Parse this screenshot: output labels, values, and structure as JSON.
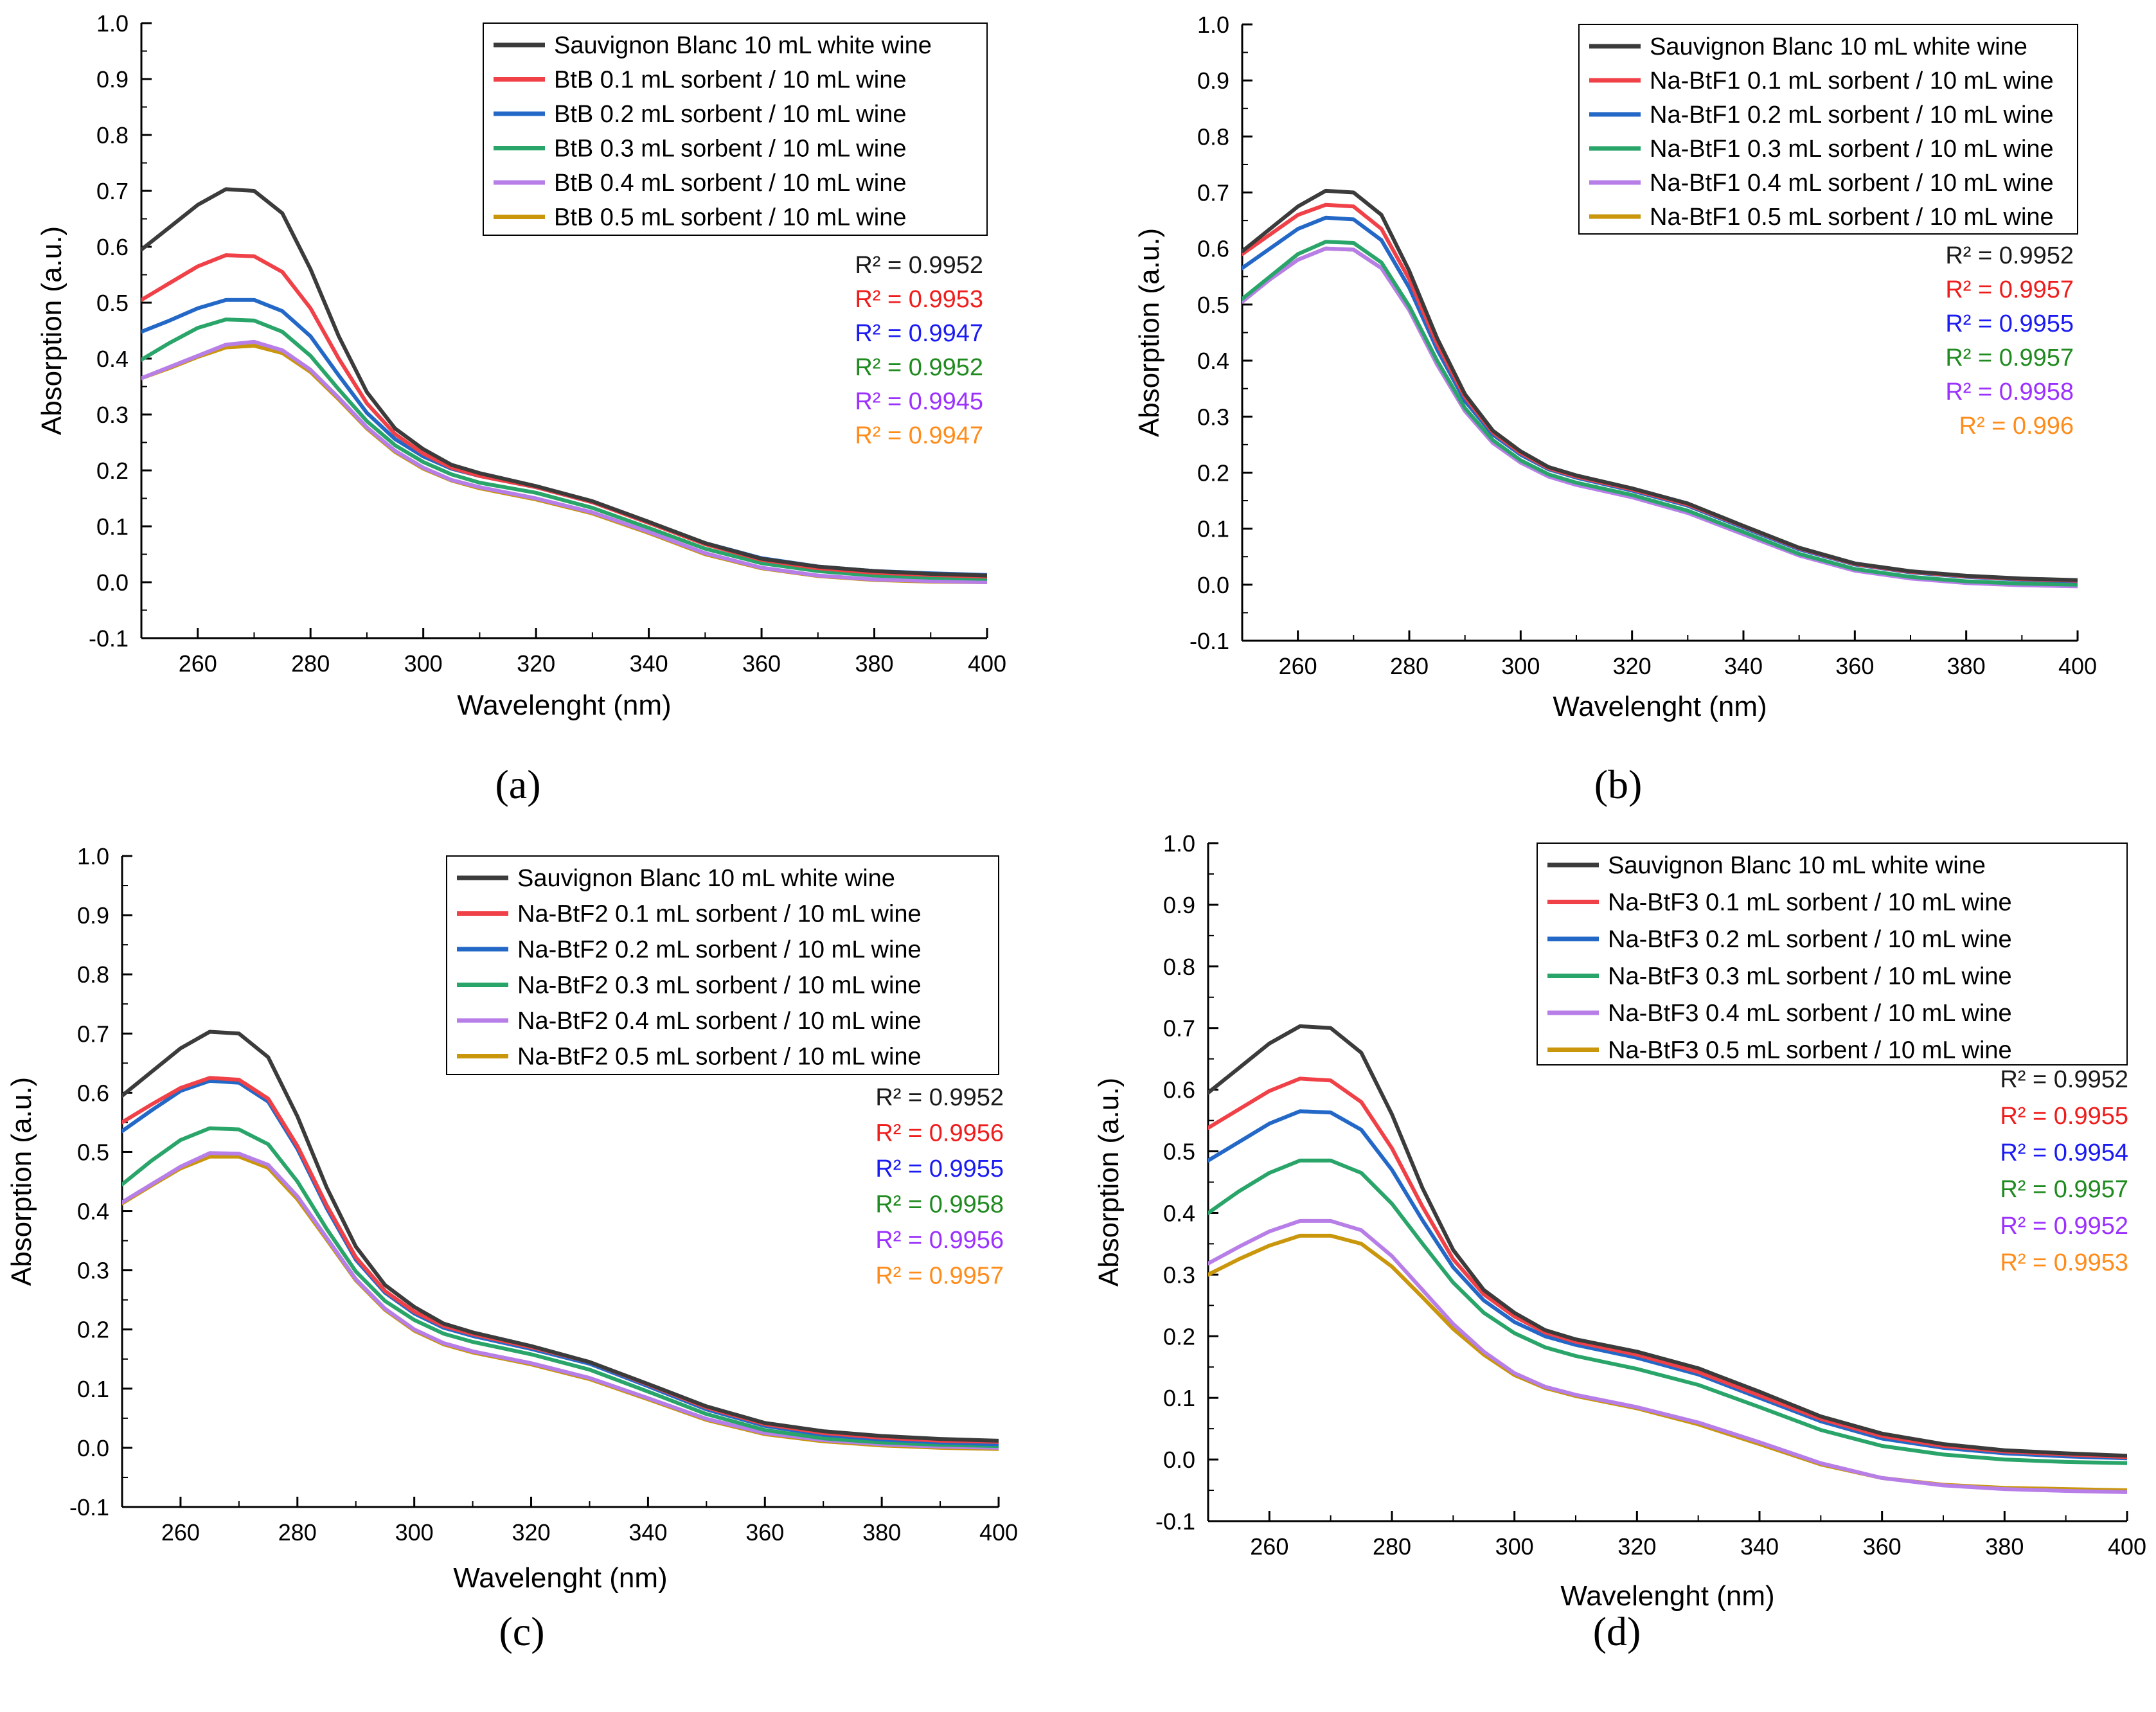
{
  "colors": {
    "control": "#3b3b3b",
    "s01": "#ef4147",
    "s02": "#2468c7",
    "s03": "#2aa56a",
    "s04": "#b77ee8",
    "s05": "#c9960c",
    "r2_control": "#1a1a1a",
    "r2_s01": "#ef1c1c",
    "r2_s02": "#1a1af2",
    "r2_s03": "#1f8a1f",
    "r2_s04": "#9b30ff",
    "r2_s05": "#ff8c1a"
  },
  "chart_data": [
    {
      "type": "line",
      "panel_label": "(a)",
      "xlabel": "Wavelenght (nm)",
      "ylabel": "Absorption (a.u.)",
      "xlim": [
        250,
        400
      ],
      "ylim": [
        -0.1,
        1.0
      ],
      "xticks": [
        "260",
        "280",
        "300",
        "320",
        "340",
        "360",
        "380",
        "400"
      ],
      "yticks": [
        "-0.1",
        "0.0",
        "0.1",
        "0.2",
        "0.3",
        "0.4",
        "0.5",
        "0.6",
        "0.7",
        "0.8",
        "0.9",
        "1.0"
      ],
      "legend_position": "top-right",
      "x": [
        250,
        255,
        260,
        265,
        270,
        275,
        280,
        285,
        290,
        295,
        300,
        305,
        310,
        320,
        330,
        340,
        350,
        360,
        370,
        380,
        390,
        400
      ],
      "series": [
        {
          "name": "Sauvignon Blanc 10 mL white wine",
          "r2": "R² = 0.9952",
          "values": [
            0.595,
            0.635,
            0.675,
            0.703,
            0.7,
            0.66,
            0.56,
            0.44,
            0.34,
            0.275,
            0.238,
            0.21,
            0.195,
            0.172,
            0.145,
            0.108,
            0.07,
            0.042,
            0.028,
            0.02,
            0.015,
            0.012
          ]
        },
        {
          "name": "BtB 0.1 mL sorbent / 10 mL wine",
          "r2": "R² = 0.9953",
          "values": [
            0.505,
            0.535,
            0.565,
            0.585,
            0.583,
            0.555,
            0.49,
            0.4,
            0.32,
            0.265,
            0.23,
            0.205,
            0.19,
            0.17,
            0.143,
            0.106,
            0.068,
            0.04,
            0.025,
            0.017,
            0.013,
            0.01
          ]
        },
        {
          "name": "BtB 0.2 mL sorbent / 10 mL wine",
          "r2": "R² = 0.9947",
          "values": [
            0.448,
            0.468,
            0.49,
            0.505,
            0.505,
            0.485,
            0.44,
            0.37,
            0.303,
            0.256,
            0.225,
            0.203,
            0.19,
            0.17,
            0.143,
            0.107,
            0.07,
            0.043,
            0.028,
            0.02,
            0.016,
            0.013
          ]
        },
        {
          "name": "BtB 0.3 mL sorbent / 10 mL wine",
          "r2": "R² = 0.9952",
          "values": [
            0.398,
            0.428,
            0.455,
            0.47,
            0.468,
            0.448,
            0.405,
            0.345,
            0.288,
            0.245,
            0.215,
            0.193,
            0.178,
            0.16,
            0.133,
            0.097,
            0.06,
            0.034,
            0.02,
            0.012,
            0.008,
            0.006
          ]
        },
        {
          "name": "BtB 0.4 mL sorbent / 10 mL wine",
          "r2": "R² = 0.9945",
          "values": [
            0.365,
            0.385,
            0.405,
            0.425,
            0.43,
            0.415,
            0.38,
            0.33,
            0.277,
            0.235,
            0.205,
            0.183,
            0.17,
            0.15,
            0.125,
            0.09,
            0.052,
            0.026,
            0.012,
            0.005,
            0.002,
            0.0
          ]
        },
        {
          "name": "BtB 0.5 mL sorbent / 10 mL wine",
          "r2": "R² = 0.9947",
          "values": [
            0.365,
            0.383,
            0.403,
            0.42,
            0.423,
            0.41,
            0.376,
            0.327,
            0.275,
            0.233,
            0.203,
            0.182,
            0.168,
            0.148,
            0.123,
            0.088,
            0.05,
            0.025,
            0.011,
            0.004,
            0.001,
            0.0
          ]
        }
      ]
    },
    {
      "type": "line",
      "panel_label": "(b)",
      "xlabel": "Wavelenght (nm)",
      "ylabel": "Absorption (a.u.)",
      "xlim": [
        250,
        400
      ],
      "ylim": [
        -0.1,
        1.0
      ],
      "xticks": [
        "260",
        "280",
        "300",
        "320",
        "340",
        "360",
        "380",
        "400"
      ],
      "yticks": [
        "-0.1",
        "0.0",
        "0.1",
        "0.2",
        "0.3",
        "0.4",
        "0.5",
        "0.6",
        "0.7",
        "0.8",
        "0.9",
        "1.0"
      ],
      "legend_position": "top-right",
      "x": [
        250,
        255,
        260,
        265,
        270,
        275,
        280,
        285,
        290,
        295,
        300,
        305,
        310,
        320,
        330,
        340,
        350,
        360,
        370,
        380,
        390,
        400
      ],
      "series": [
        {
          "name": "Sauvignon Blanc 10 mL white wine",
          "r2": "R² = 0.9952",
          "values": [
            0.595,
            0.635,
            0.675,
            0.703,
            0.7,
            0.66,
            0.56,
            0.44,
            0.34,
            0.275,
            0.238,
            0.21,
            0.195,
            0.172,
            0.145,
            0.105,
            0.066,
            0.038,
            0.024,
            0.016,
            0.011,
            0.008
          ]
        },
        {
          "name": "Na-BtF1 0.1 mL sorbent / 10 mL wine",
          "r2": "R² = 0.9957",
          "values": [
            0.59,
            0.625,
            0.66,
            0.678,
            0.675,
            0.635,
            0.545,
            0.43,
            0.335,
            0.272,
            0.235,
            0.208,
            0.193,
            0.17,
            0.143,
            0.104,
            0.065,
            0.037,
            0.023,
            0.015,
            0.01,
            0.007
          ]
        },
        {
          "name": "Na-BtF1 0.2 mL sorbent / 10 mL wine",
          "r2": "R² = 0.9955",
          "values": [
            0.565,
            0.6,
            0.635,
            0.655,
            0.652,
            0.615,
            0.53,
            0.42,
            0.328,
            0.268,
            0.232,
            0.206,
            0.191,
            0.168,
            0.141,
            0.102,
            0.063,
            0.036,
            0.022,
            0.014,
            0.009,
            0.006
          ]
        },
        {
          "name": "Na-BtF1 0.3 mL sorbent / 10 mL wine",
          "r2": "R² = 0.9957",
          "values": [
            0.51,
            0.55,
            0.59,
            0.612,
            0.61,
            0.575,
            0.497,
            0.4,
            0.315,
            0.258,
            0.222,
            0.197,
            0.182,
            0.16,
            0.132,
            0.094,
            0.055,
            0.028,
            0.014,
            0.006,
            0.002,
            0.0
          ]
        },
        {
          "name": "Na-BtF1 0.4 mL sorbent / 10 mL wine",
          "r2": "R² = 0.9958",
          "values": [
            0.505,
            0.545,
            0.58,
            0.6,
            0.598,
            0.565,
            0.49,
            0.393,
            0.31,
            0.253,
            0.218,
            0.193,
            0.178,
            0.156,
            0.128,
            0.09,
            0.052,
            0.025,
            0.011,
            0.003,
            -0.001,
            -0.003
          ]
        },
        {
          "name": "Na-BtF1 0.5 mL sorbent / 10 mL wine",
          "r2": "R² = 0.996",
          "values": [
            0.505,
            0.545,
            0.58,
            0.6,
            0.598,
            0.565,
            0.49,
            0.393,
            0.31,
            0.253,
            0.218,
            0.194,
            0.179,
            0.157,
            0.129,
            0.091,
            0.053,
            0.026,
            0.012,
            0.004,
            0.0,
            -0.002
          ]
        }
      ]
    },
    {
      "type": "line",
      "panel_label": "(c)",
      "xlabel": "Wavelenght (nm)",
      "ylabel": "Absorption (a.u.)",
      "xlim": [
        250,
        400
      ],
      "ylim": [
        -0.1,
        1.0
      ],
      "xticks": [
        "260",
        "280",
        "300",
        "320",
        "340",
        "360",
        "380",
        "400"
      ],
      "yticks": [
        "-0.1",
        "0.0",
        "0.1",
        "0.2",
        "0.3",
        "0.4",
        "0.5",
        "0.6",
        "0.7",
        "0.8",
        "0.9",
        "1.0"
      ],
      "legend_position": "top-right",
      "x": [
        250,
        255,
        260,
        265,
        270,
        275,
        280,
        285,
        290,
        295,
        300,
        305,
        310,
        320,
        330,
        340,
        350,
        360,
        370,
        380,
        390,
        400
      ],
      "series": [
        {
          "name": "Sauvignon Blanc 10 mL white wine",
          "r2": "R² = 0.9952",
          "values": [
            0.595,
            0.635,
            0.675,
            0.703,
            0.7,
            0.66,
            0.56,
            0.44,
            0.34,
            0.275,
            0.238,
            0.21,
            0.195,
            0.172,
            0.145,
            0.108,
            0.07,
            0.042,
            0.028,
            0.02,
            0.015,
            0.012
          ]
        },
        {
          "name": "Na-BtF2 0.1 mL sorbent / 10 mL wine",
          "r2": "R² = 0.9956",
          "values": [
            0.55,
            0.58,
            0.608,
            0.625,
            0.622,
            0.59,
            0.51,
            0.41,
            0.322,
            0.265,
            0.23,
            0.206,
            0.192,
            0.17,
            0.145,
            0.107,
            0.068,
            0.04,
            0.025,
            0.017,
            0.012,
            0.01
          ]
        },
        {
          "name": "Na-BtF2 0.2 mL sorbent / 10 mL wine",
          "r2": "R² = 0.9955",
          "values": [
            0.535,
            0.57,
            0.603,
            0.62,
            0.617,
            0.585,
            0.505,
            0.405,
            0.318,
            0.262,
            0.227,
            0.203,
            0.189,
            0.167,
            0.142,
            0.104,
            0.065,
            0.037,
            0.022,
            0.014,
            0.009,
            0.006
          ]
        },
        {
          "name": "Na-BtF2 0.3 mL sorbent / 10 mL wine",
          "r2": "R² = 0.9958",
          "values": [
            0.445,
            0.485,
            0.52,
            0.54,
            0.538,
            0.513,
            0.45,
            0.37,
            0.298,
            0.248,
            0.216,
            0.193,
            0.179,
            0.158,
            0.132,
            0.095,
            0.057,
            0.03,
            0.016,
            0.009,
            0.005,
            0.003
          ]
        },
        {
          "name": "Na-BtF2 0.4 mL sorbent / 10 mL wine",
          "r2": "R² = 0.9956",
          "values": [
            0.415,
            0.445,
            0.475,
            0.498,
            0.497,
            0.478,
            0.425,
            0.355,
            0.285,
            0.235,
            0.2,
            0.177,
            0.163,
            0.143,
            0.118,
            0.084,
            0.049,
            0.025,
            0.013,
            0.006,
            0.002,
            0.0
          ]
        },
        {
          "name": "Na-BtF2 0.5 mL sorbent / 10 mL wine",
          "r2": "R² = 0.9957",
          "values": [
            0.413,
            0.443,
            0.472,
            0.492,
            0.492,
            0.473,
            0.42,
            0.352,
            0.283,
            0.233,
            0.198,
            0.175,
            0.161,
            0.141,
            0.116,
            0.082,
            0.047,
            0.023,
            0.011,
            0.004,
            0.0,
            -0.002
          ]
        }
      ]
    },
    {
      "type": "line",
      "panel_label": "(d)",
      "xlabel": "Wavelenght (nm)",
      "ylabel": "Absorption (a.u.)",
      "xlim": [
        250,
        400
      ],
      "ylim": [
        -0.1,
        1.0
      ],
      "xticks": [
        "260",
        "280",
        "300",
        "320",
        "340",
        "360",
        "380",
        "400"
      ],
      "yticks": [
        "-0.1",
        "0.0",
        "0.1",
        "0.2",
        "0.3",
        "0.4",
        "0.5",
        "0.6",
        "0.7",
        "0.8",
        "0.9",
        "1.0"
      ],
      "legend_position": "top-right",
      "x": [
        250,
        255,
        260,
        265,
        270,
        275,
        280,
        285,
        290,
        295,
        300,
        305,
        310,
        320,
        330,
        340,
        350,
        360,
        370,
        380,
        390,
        400
      ],
      "series": [
        {
          "name": "Sauvignon Blanc 10 mL white wine",
          "r2": "R² = 0.9952",
          "values": [
            0.595,
            0.635,
            0.675,
            0.703,
            0.7,
            0.66,
            0.56,
            0.44,
            0.34,
            0.275,
            0.238,
            0.21,
            0.195,
            0.175,
            0.148,
            0.11,
            0.07,
            0.042,
            0.025,
            0.015,
            0.01,
            0.006
          ]
        },
        {
          "name": "Na-BtF3 0.1 mL sorbent / 10 mL wine",
          "r2": "R² = 0.9955",
          "values": [
            0.538,
            0.568,
            0.598,
            0.618,
            0.615,
            0.58,
            0.505,
            0.41,
            0.325,
            0.268,
            0.232,
            0.206,
            0.191,
            0.17,
            0.142,
            0.104,
            0.066,
            0.038,
            0.022,
            0.013,
            0.008,
            0.004
          ]
        },
        {
          "name": "Na-BtF3 0.2 mL sorbent / 10 mL wine",
          "r2": "R² = 0.9954",
          "values": [
            0.485,
            0.515,
            0.545,
            0.565,
            0.563,
            0.535,
            0.47,
            0.388,
            0.312,
            0.258,
            0.223,
            0.2,
            0.186,
            0.165,
            0.138,
            0.1,
            0.062,
            0.034,
            0.019,
            0.01,
            0.005,
            0.002
          ]
        },
        {
          "name": "Na-BtF3 0.3 mL sorbent / 10 mL wine",
          "r2": "R² = 0.9957",
          "values": [
            0.4,
            0.435,
            0.465,
            0.485,
            0.485,
            0.465,
            0.415,
            0.35,
            0.287,
            0.238,
            0.205,
            0.182,
            0.168,
            0.147,
            0.121,
            0.085,
            0.048,
            0.022,
            0.008,
            0.0,
            -0.004,
            -0.006
          ]
        },
        {
          "name": "Na-BtF3 0.4 mL sorbent / 10 mL wine",
          "r2": "R² = 0.9952",
          "values": [
            0.318,
            0.345,
            0.37,
            0.387,
            0.387,
            0.372,
            0.33,
            0.275,
            0.22,
            0.175,
            0.14,
            0.118,
            0.105,
            0.085,
            0.06,
            0.028,
            -0.006,
            -0.03,
            -0.042,
            -0.048,
            -0.051,
            -0.053
          ]
        },
        {
          "name": "Na-BtF3 0.5 mL sorbent / 10 mL wine",
          "r2": "R² = 0.9953",
          "values": [
            0.3,
            0.325,
            0.347,
            0.363,
            0.363,
            0.35,
            0.313,
            0.263,
            0.212,
            0.17,
            0.137,
            0.116,
            0.103,
            0.083,
            0.057,
            0.025,
            -0.008,
            -0.03,
            -0.041,
            -0.046,
            -0.048,
            -0.05
          ]
        }
      ]
    }
  ]
}
